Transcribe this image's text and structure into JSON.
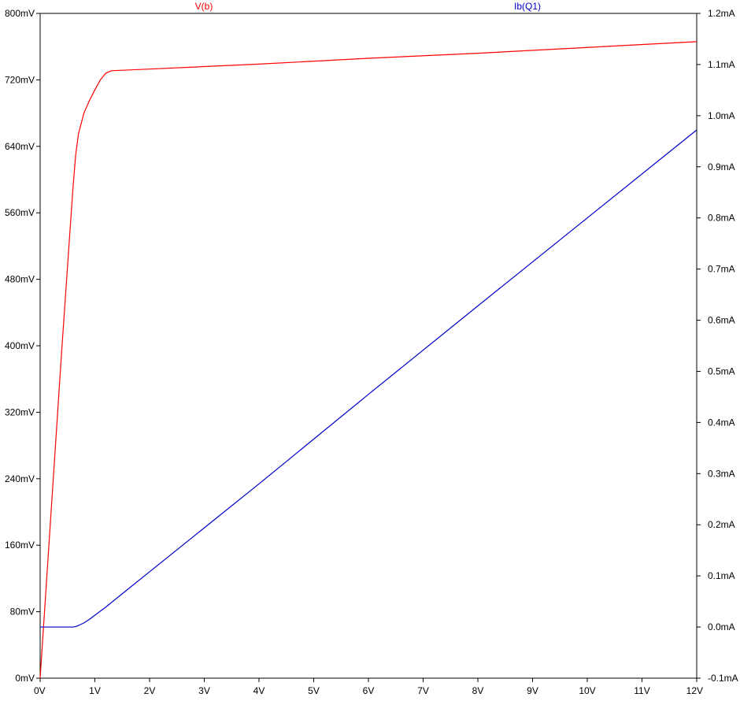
{
  "chart_data": {
    "type": "line",
    "title": "",
    "xlabel": "",
    "ylabel": "",
    "xlim": [
      0,
      12
    ],
    "x_ticks": [
      0,
      1,
      2,
      3,
      4,
      5,
      6,
      7,
      8,
      9,
      10,
      11,
      12
    ],
    "x_tick_labels": [
      "0V",
      "1V",
      "2V",
      "3V",
      "4V",
      "5V",
      "6V",
      "7V",
      "8V",
      "9V",
      "10V",
      "11V",
      "12V"
    ],
    "y_left": {
      "lim": [
        0,
        800
      ],
      "ticks": [
        0,
        80,
        160,
        240,
        320,
        400,
        480,
        560,
        640,
        720,
        800
      ],
      "tick_labels": [
        "0mV",
        "80mV",
        "160mV",
        "240mV",
        "320mV",
        "400mV",
        "480mV",
        "560mV",
        "640mV",
        "720mV",
        "800mV"
      ]
    },
    "y_right": {
      "lim": [
        -0.1,
        1.2
      ],
      "ticks": [
        -0.1,
        0.0,
        0.1,
        0.2,
        0.3,
        0.4,
        0.5,
        0.6,
        0.7,
        0.8,
        0.9,
        1.0,
        1.1,
        1.2
      ],
      "tick_labels": [
        "-0.1mA",
        "0.0mA",
        "0.1mA",
        "0.2mA",
        "0.3mA",
        "0.4mA",
        "0.5mA",
        "0.6mA",
        "0.7mA",
        "0.8mA",
        "0.9mA",
        "1.0mA",
        "1.1mA",
        "1.2mA"
      ]
    },
    "grid": false,
    "legend": "top",
    "series": [
      {
        "name": "V(b)",
        "axis": "left",
        "color": "#ff0000",
        "x": [
          0,
          0.1,
          0.2,
          0.3,
          0.4,
          0.5,
          0.6,
          0.65,
          0.7,
          0.8,
          0.9,
          1.0,
          1.1,
          1.2,
          1.3,
          2,
          4,
          6,
          8,
          10,
          12
        ],
        "y": [
          0,
          100,
          200,
          300,
          400,
          495,
          590,
          630,
          655,
          680,
          695,
          708,
          720,
          728,
          731,
          733,
          739,
          746,
          752,
          759,
          766
        ]
      },
      {
        "name": "Ib(Q1)",
        "axis": "right",
        "color": "#0000cc",
        "x": [
          0,
          0.6,
          0.65,
          0.7,
          0.8,
          0.9,
          1.0,
          1.2,
          1.5,
          2,
          4,
          6,
          8,
          10,
          12
        ],
        "y": [
          0.0,
          0.0,
          0.001,
          0.003,
          0.008,
          0.015,
          0.023,
          0.039,
          0.065,
          0.108,
          0.28,
          0.455,
          0.628,
          0.8,
          0.972
        ]
      }
    ]
  }
}
